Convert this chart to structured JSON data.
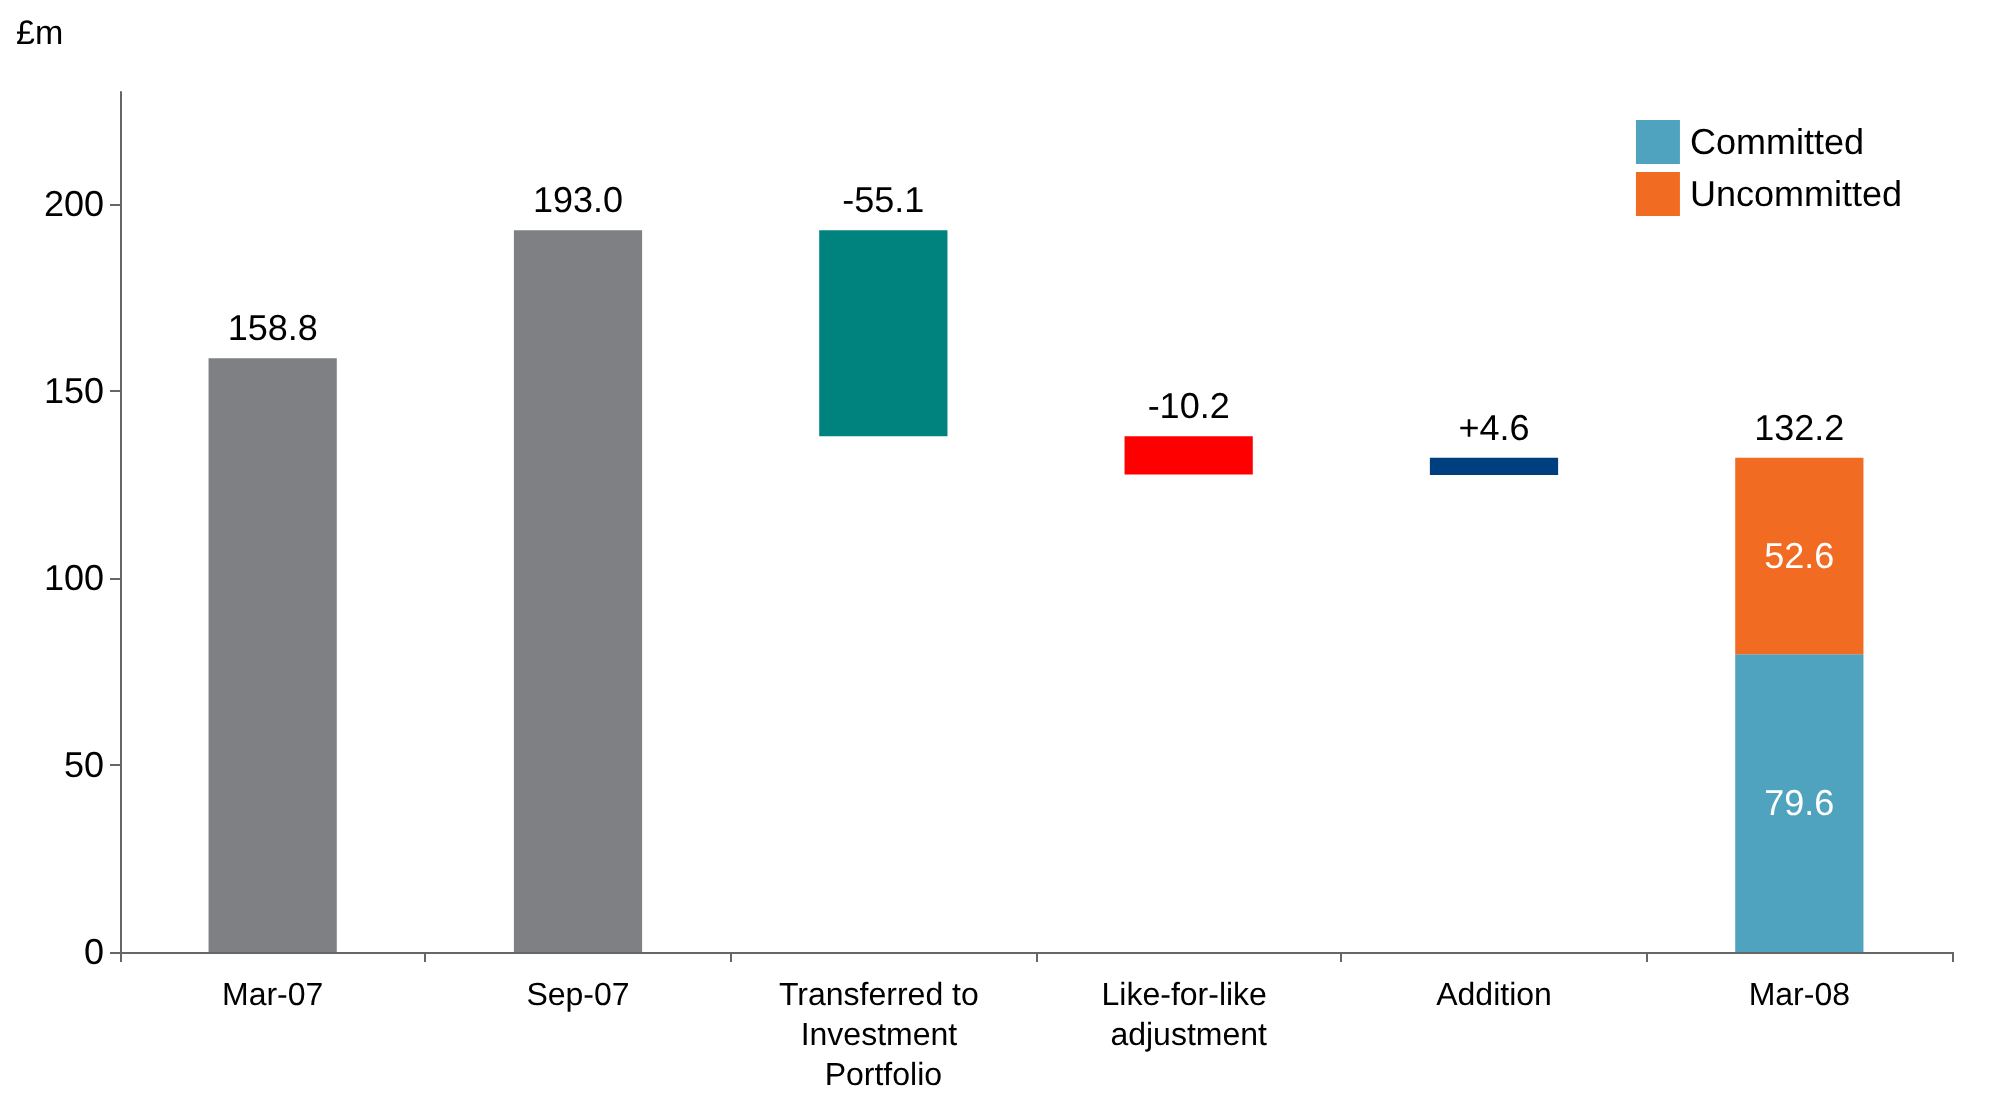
{
  "chart_data": {
    "type": "bar",
    "ylabel": "£m",
    "categories": [
      "Mar-07",
      "Sep-07",
      "Transferred to Investment Portfolio",
      "Like-for-like adjustment",
      "Addition",
      "Mar-08"
    ],
    "stacked": true,
    "ylim": [
      0,
      230
    ],
    "yticks": [
      0,
      50,
      100,
      150,
      200
    ],
    "grid": false,
    "legend": "top right",
    "series": [
      {
        "colors": [
          "#7f8084",
          "#7f8084",
          "#00827f",
          "#ff0000",
          "#003f7f",
          null
        ],
        "values": [
          158.8,
          193.0,
          -55.1,
          -10.2,
          4.6,
          null
        ],
        "base": [
          0,
          0,
          193.0,
          137.9,
          127.6,
          null
        ],
        "value_labels": [
          "158.8",
          "193.0",
          "-55.1",
          "-10.2",
          "+4.6",
          null
        ]
      },
      {
        "name": "Committed",
        "color": "#4fa3bf",
        "values": [
          null,
          null,
          null,
          null,
          null,
          79.6
        ],
        "value_labels": [
          null,
          null,
          null,
          null,
          null,
          "79.6"
        ]
      },
      {
        "name": "Uncommitted",
        "color": "#f26b22",
        "values": [
          null,
          null,
          null,
          null,
          null,
          52.6
        ],
        "value_labels": [
          null,
          null,
          null,
          null,
          null,
          "52.6"
        ]
      }
    ],
    "totals": [
      null,
      null,
      null,
      null,
      null,
      "132.2"
    ]
  }
}
